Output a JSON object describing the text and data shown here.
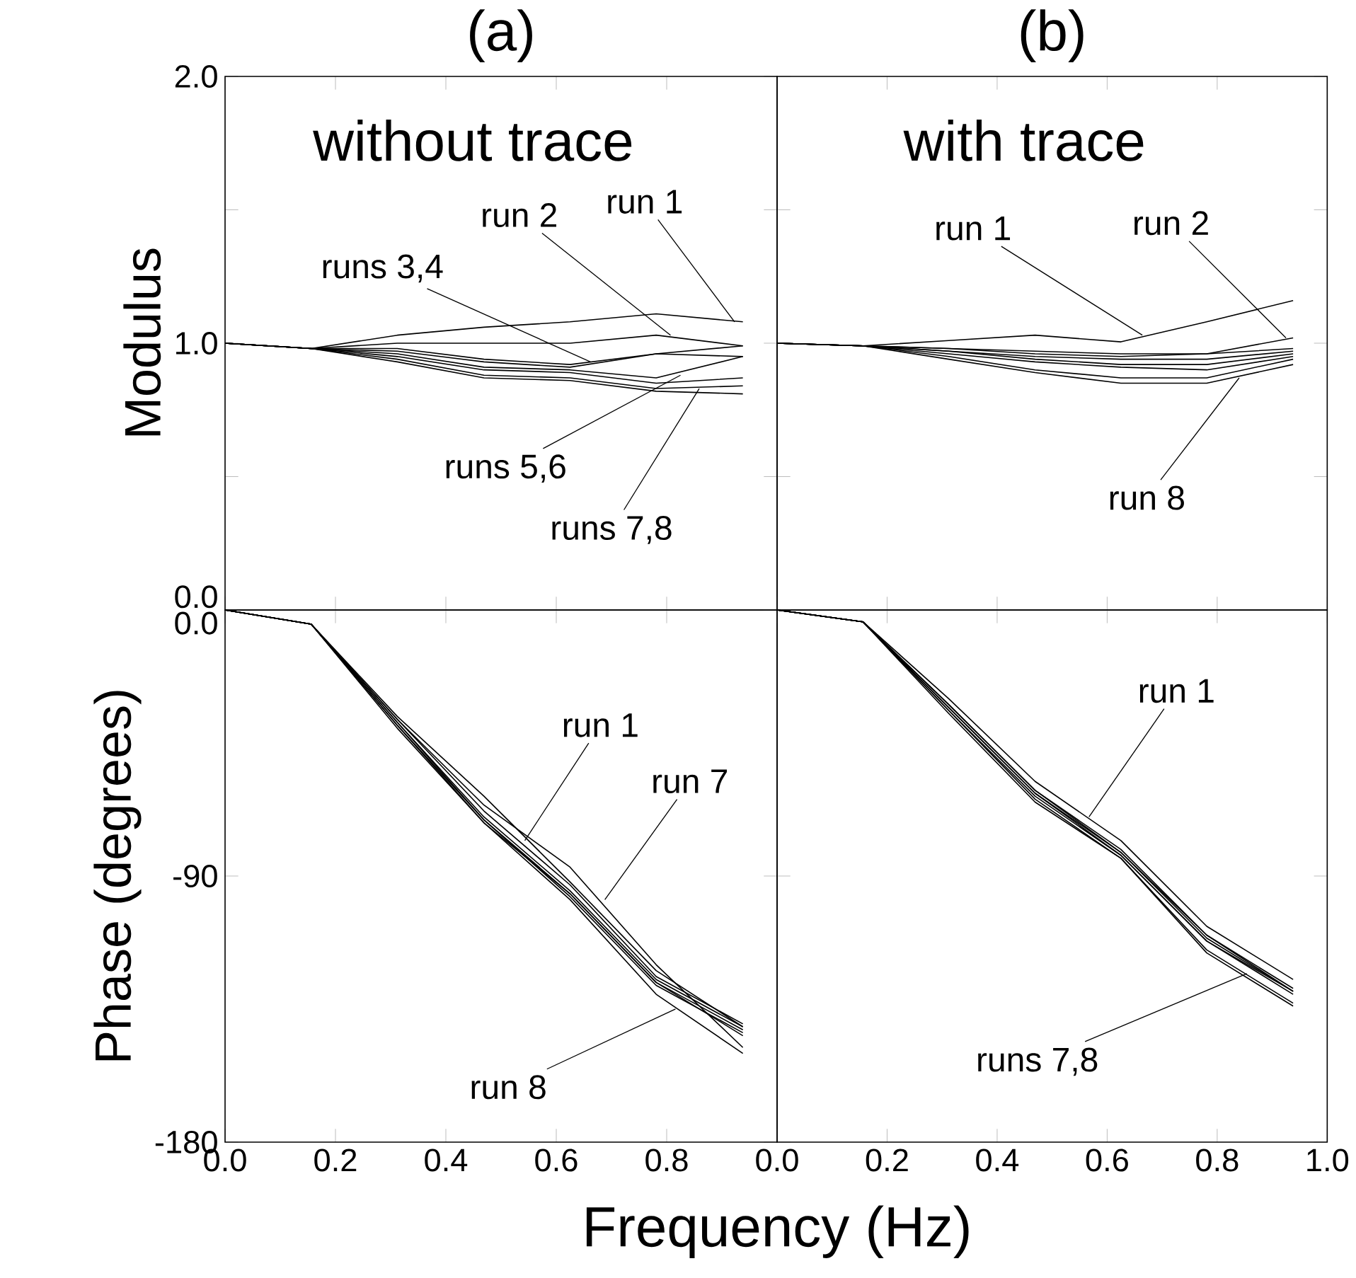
{
  "chart_data": [
    {
      "type": "line",
      "title": "(a)",
      "ylabel": "Modulus",
      "xlim": [
        0,
        1
      ],
      "ylim": [
        0,
        2
      ],
      "xticks": [
        {
          "value": 0,
          "label": null
        },
        {
          "value": 0.2,
          "label": null
        },
        {
          "value": 0.4,
          "label": null
        },
        {
          "value": 0.6,
          "label": null
        },
        {
          "value": 0.8,
          "label": null
        },
        {
          "value": 1,
          "label": null
        }
      ],
      "yticks": [
        {
          "value": 0,
          "label": "0.0"
        },
        {
          "value": 0.5,
          "label": null
        },
        {
          "value": 1,
          "label": "1.0"
        },
        {
          "value": 1.5,
          "label": null
        },
        {
          "value": 2,
          "label": "2.0"
        }
      ],
      "tick_labels": "y",
      "marker": "none",
      "line_style": "solid",
      "x": [
        0,
        0.156,
        0.312,
        0.469,
        0.625,
        0.781,
        0.938
      ],
      "series": [
        {
          "color": "#000000",
          "values": [
            1,
            0.98,
            1.03,
            1.06,
            1.08,
            1.11,
            1.08
          ]
        },
        {
          "color": "#000000",
          "values": [
            1,
            0.98,
            1.0,
            1.0,
            1.0,
            1.03,
            0.99
          ]
        },
        {
          "color": "#000000",
          "values": [
            1,
            0.98,
            0.98,
            0.94,
            0.92,
            0.96,
            0.99
          ]
        },
        {
          "color": "#000000",
          "values": [
            1,
            0.98,
            0.97,
            0.93,
            0.91,
            0.96,
            0.95
          ]
        },
        {
          "color": "#000000",
          "values": [
            1,
            0.98,
            0.96,
            0.91,
            0.9,
            0.87,
            0.95
          ]
        },
        {
          "color": "#000000",
          "values": [
            1,
            0.98,
            0.95,
            0.9,
            0.89,
            0.85,
            0.87
          ]
        },
        {
          "color": "#000000",
          "values": [
            1,
            0.98,
            0.94,
            0.88,
            0.87,
            0.83,
            0.84
          ]
        },
        {
          "color": "#000000",
          "values": [
            1,
            0.98,
            0.93,
            0.87,
            0.86,
            0.82,
            0.81
          ]
        }
      ],
      "annotations": [
        "without trace",
        {
          "text": "run 1",
          "x": 0.923,
          "y": 1.08
        },
        {
          "text": "run 2",
          "x": 0.807,
          "y": 1.03
        },
        {
          "text": "runs 3,4",
          "x": 0.662,
          "y": 0.93
        },
        {
          "text": "runs 5,6",
          "x": 0.825,
          "y": 0.88
        },
        {
          "text": "runs 7,8",
          "x": 0.859,
          "y": 0.83
        }
      ]
    },
    {
      "type": "line",
      "title": "(b)",
      "xlim": [
        0,
        1
      ],
      "ylim": [
        0,
        2
      ],
      "xticks": [
        {
          "value": 0,
          "label": null
        },
        {
          "value": 0.2,
          "label": null
        },
        {
          "value": 0.4,
          "label": null
        },
        {
          "value": 0.6,
          "label": null
        },
        {
          "value": 0.8,
          "label": null
        },
        {
          "value": 1,
          "label": null
        }
      ],
      "yticks": [
        {
          "value": 0,
          "label": null
        },
        {
          "value": 0.5,
          "label": null
        },
        {
          "value": 1,
          "label": null
        },
        {
          "value": 1.5,
          "label": null
        },
        {
          "value": 2,
          "label": null
        }
      ],
      "tick_labels": false,
      "marker": "none",
      "line_style": "solid",
      "x": [
        0,
        0.156,
        0.312,
        0.469,
        0.625,
        0.781,
        0.938
      ],
      "series": [
        {
          "color": "#000000",
          "values": [
            1,
            0.99,
            1.01,
            1.03,
            1.005,
            1.08,
            1.16
          ]
        },
        {
          "color": "#000000",
          "values": [
            1,
            0.99,
            0.98,
            0.97,
            0.96,
            0.96,
            1.02
          ]
        },
        {
          "color": "#000000",
          "values": [
            1,
            0.99,
            0.98,
            0.96,
            0.95,
            0.96,
            0.98
          ]
        },
        {
          "color": "#000000",
          "values": [
            1,
            0.99,
            0.97,
            0.95,
            0.94,
            0.94,
            0.97
          ]
        },
        {
          "color": "#000000",
          "values": [
            1,
            0.99,
            0.97,
            0.94,
            0.92,
            0.92,
            0.96
          ]
        },
        {
          "color": "#000000",
          "values": [
            1,
            0.99,
            0.96,
            0.93,
            0.91,
            0.9,
            0.95
          ]
        },
        {
          "color": "#000000",
          "values": [
            1,
            0.99,
            0.95,
            0.9,
            0.87,
            0.87,
            0.94
          ]
        },
        {
          "color": "#000000",
          "values": [
            1,
            0.99,
            0.94,
            0.89,
            0.85,
            0.85,
            0.92
          ]
        }
      ],
      "annotations": [
        "with trace",
        {
          "text": "run 1",
          "x": 0.664,
          "y": 1.03
        },
        {
          "text": "run 2",
          "x": 0.925,
          "y": 1.02
        },
        {
          "text": "run 8",
          "x": 0.84,
          "y": 0.87
        }
      ]
    },
    {
      "type": "line",
      "ylabel": "Phase (degrees)",
      "xlabel": "Frequency (Hz)",
      "xlim": [
        0,
        1
      ],
      "ylim": [
        -180,
        0
      ],
      "xticks": [
        {
          "value": 0,
          "label": "0.0"
        },
        {
          "value": 0.2,
          "label": "0.2"
        },
        {
          "value": 0.4,
          "label": "0.4"
        },
        {
          "value": 0.6,
          "label": "0.6"
        },
        {
          "value": 0.8,
          "label": "0.8"
        },
        {
          "value": 1,
          "label": null
        }
      ],
      "yticks": [
        {
          "value": -180,
          "label": "-180"
        },
        {
          "value": -90,
          "label": "-90"
        },
        {
          "value": 0,
          "label": "0.0"
        }
      ],
      "marker": "none",
      "line_style": "solid",
      "x": [
        0,
        0.156,
        0.312,
        0.469,
        0.625,
        0.781,
        0.938
      ],
      "series": [
        {
          "color": "#000000",
          "values": [
            0,
            -4.8,
            -36,
            -63,
            -92,
            -122,
            -141
          ]
        },
        {
          "color": "#000000",
          "values": [
            0,
            -4.8,
            -37,
            -68,
            -93,
            -124,
            -140
          ]
        },
        {
          "color": "#000000",
          "values": [
            0,
            -4.8,
            -38,
            -70,
            -95,
            -125,
            -141
          ]
        },
        {
          "color": "#000000",
          "values": [
            0,
            -4.8,
            -39,
            -71,
            -96,
            -126,
            -142
          ]
        },
        {
          "color": "#000000",
          "values": [
            0,
            -4.8,
            -38,
            -71,
            -97,
            -127,
            -143
          ]
        },
        {
          "color": "#000000",
          "values": [
            0,
            -4.8,
            -39,
            -72,
            -96,
            -126,
            -144
          ]
        },
        {
          "color": "#000000",
          "values": [
            0,
            -4.8,
            -37,
            -66,
            -87,
            -120,
            -148
          ]
        },
        {
          "color": "#000000",
          "values": [
            0,
            -4.8,
            -40,
            -72,
            -98,
            -130,
            -150
          ]
        }
      ],
      "annotations": [
        {
          "text": "run 1",
          "x": 0.543,
          "y": -78
        },
        {
          "text": "run 7",
          "x": 0.688,
          "y": -98
        },
        {
          "text": "run 8",
          "x": 0.816,
          "y": -135
        }
      ]
    },
    {
      "type": "line",
      "xlim": [
        0,
        1
      ],
      "ylim": [
        -180,
        0
      ],
      "xticks": [
        {
          "value": 0,
          "label": "0.0"
        },
        {
          "value": 0.2,
          "label": "0.2"
        },
        {
          "value": 0.4,
          "label": "0.4"
        },
        {
          "value": 0.6,
          "label": "0.6"
        },
        {
          "value": 0.8,
          "label": "0.8"
        },
        {
          "value": 1,
          "label": "1.0"
        }
      ],
      "yticks": [
        {
          "value": -180,
          "label": null
        },
        {
          "value": -90,
          "label": null
        },
        {
          "value": 0,
          "label": null
        }
      ],
      "tick_labels": "x",
      "marker": "none",
      "line_style": "solid",
      "x": [
        0,
        0.156,
        0.312,
        0.469,
        0.625,
        0.781,
        0.938
      ],
      "series": [
        {
          "color": "#000000",
          "values": [
            0,
            -4,
            -30,
            -58,
            -78,
            -107,
            -125
          ]
        },
        {
          "color": "#000000",
          "values": [
            0,
            -4,
            -32,
            -61,
            -81,
            -110,
            -128
          ]
        },
        {
          "color": "#000000",
          "values": [
            0,
            -4,
            -33,
            -62,
            -82,
            -111,
            -129
          ]
        },
        {
          "color": "#000000",
          "values": [
            0,
            -4,
            -33,
            -62,
            -83,
            -112,
            -129
          ]
        },
        {
          "color": "#000000",
          "values": [
            0,
            -4,
            -34,
            -63,
            -83,
            -112,
            -130
          ]
        },
        {
          "color": "#000000",
          "values": [
            0,
            -4,
            -32,
            -61,
            -82,
            -110,
            -129
          ]
        },
        {
          "color": "#000000",
          "values": [
            0,
            -4,
            -34,
            -64,
            -84,
            -115,
            -133
          ]
        },
        {
          "color": "#000000",
          "values": [
            0,
            -4,
            -35,
            -65,
            -84,
            -116,
            -134
          ]
        }
      ],
      "annotations": [
        {
          "text": "run 1",
          "x": 0.567,
          "y": -70
        },
        {
          "text": "runs 7,8",
          "x": 0.854,
          "y": -123
        }
      ]
    }
  ]
}
